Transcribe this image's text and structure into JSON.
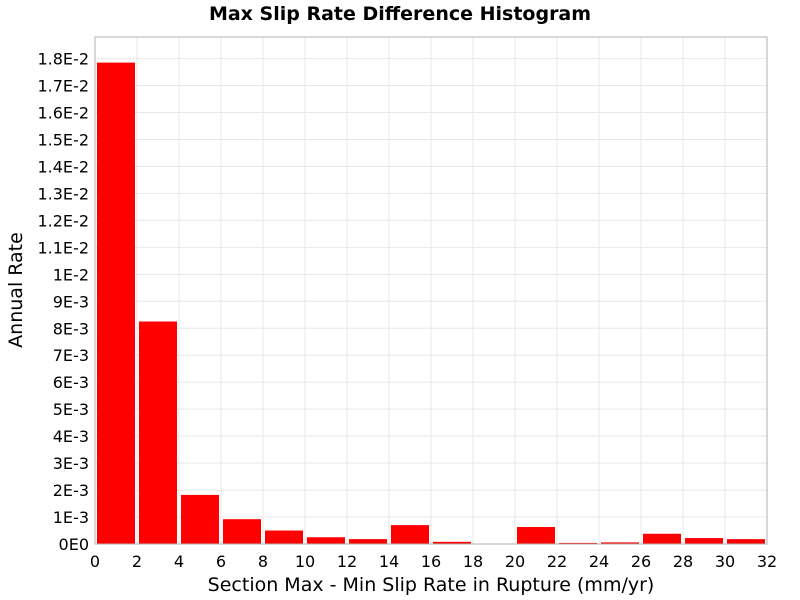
{
  "chart_data": {
    "type": "bar",
    "title": "Max Slip Rate Difference Histogram",
    "xlabel": "Section Max - Min Slip Rate in Rupture (mm/yr)",
    "ylabel": "Annual Rate",
    "xlim": [
      0,
      32
    ],
    "ylim": [
      0,
      0.0188
    ],
    "grid": true,
    "x_ticks": [
      "0",
      "2",
      "4",
      "6",
      "8",
      "10",
      "12",
      "14",
      "16",
      "18",
      "20",
      "22",
      "24",
      "26",
      "28",
      "30",
      "32"
    ],
    "y_ticks": [
      "0E0",
      "1E-3",
      "2E-3",
      "3E-3",
      "4E-3",
      "5E-3",
      "6E-3",
      "7E-3",
      "8E-3",
      "9E-3",
      "1E-2",
      "1.1E-2",
      "1.2E-2",
      "1.3E-2",
      "1.4E-2",
      "1.5E-2",
      "1.6E-2",
      "1.7E-2",
      "1.8E-2"
    ],
    "bin_width": 2,
    "bins": [
      {
        "x_start": 0,
        "value": 0.01785
      },
      {
        "x_start": 2,
        "value": 0.00825
      },
      {
        "x_start": 4,
        "value": 0.00182
      },
      {
        "x_start": 6,
        "value": 0.00092
      },
      {
        "x_start": 8,
        "value": 0.0005
      },
      {
        "x_start": 10,
        "value": 0.00025
      },
      {
        "x_start": 12,
        "value": 0.00018
      },
      {
        "x_start": 14,
        "value": 0.0007
      },
      {
        "x_start": 16,
        "value": 8e-05
      },
      {
        "x_start": 18,
        "value": 0.0
      },
      {
        "x_start": 20,
        "value": 0.00063
      },
      {
        "x_start": 22,
        "value": 4e-05
      },
      {
        "x_start": 24,
        "value": 6e-05
      },
      {
        "x_start": 26,
        "value": 0.00038
      },
      {
        "x_start": 28,
        "value": 0.00022
      },
      {
        "x_start": 30,
        "value": 0.00018
      }
    ],
    "colors": {
      "bar": "#ff0000"
    }
  }
}
